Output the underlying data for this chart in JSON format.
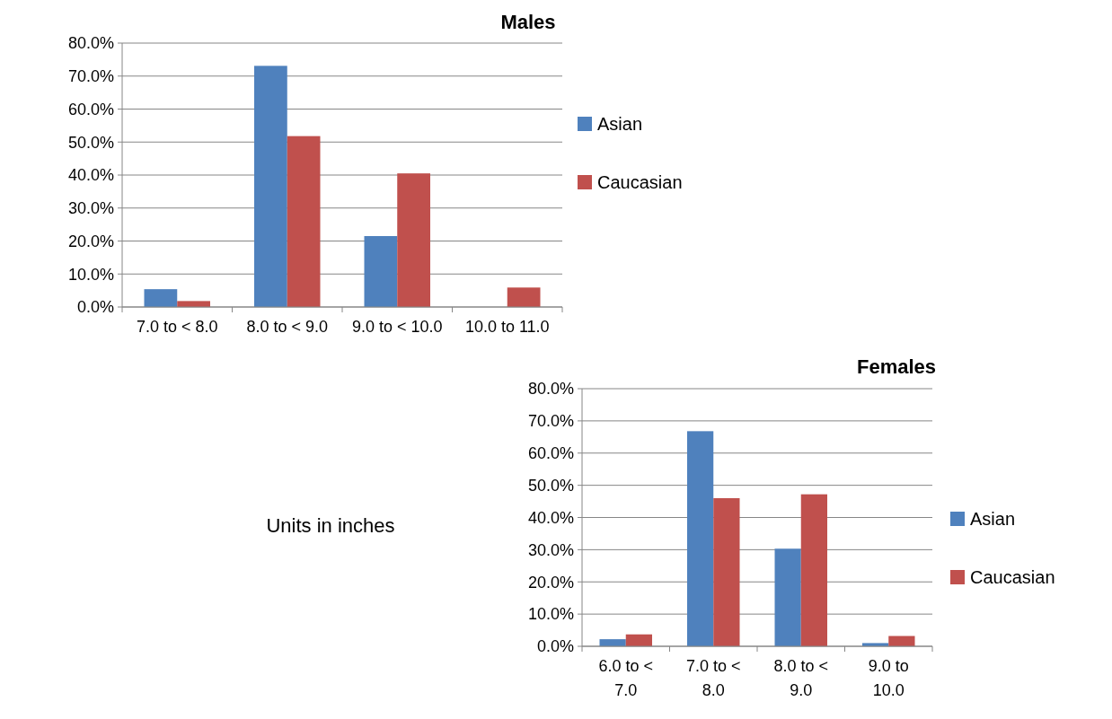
{
  "chart_data": [
    {
      "type": "bar",
      "title": "Males",
      "categories": [
        "7.0 to < 8.0",
        "8.0 to < 9.0",
        "9.0 to < 10.0",
        "10.0 to 11.0"
      ],
      "series": [
        {
          "name": "Asian",
          "color": "#4f81bd",
          "values": [
            5.4,
            73.1,
            21.5,
            null
          ]
        },
        {
          "name": "Caucasian",
          "color": "#c0504d",
          "values": [
            1.8,
            51.8,
            40.5,
            5.9
          ]
        }
      ],
      "ylim": [
        0,
        80
      ],
      "yticks": [
        {
          "value": 0,
          "label": "0.0%"
        },
        {
          "value": 10,
          "label": "10.0%"
        },
        {
          "value": 20,
          "label": "20.0%"
        },
        {
          "value": 30,
          "label": "30.0%"
        },
        {
          "value": 40,
          "label": "40.0%"
        },
        {
          "value": 50,
          "label": "50.0%"
        },
        {
          "value": 60,
          "label": "60.0%"
        },
        {
          "value": 70,
          "label": "70.0%"
        },
        {
          "value": 80,
          "label": "80.0%"
        }
      ],
      "grid": "y",
      "legend": "right",
      "annotations": [
        "Units in inches"
      ]
    },
    {
      "type": "bar",
      "title": "Females",
      "categories": [
        "6.0 to < 7.0",
        "7.0 to < 8.0",
        "8.0 to < 9.0",
        "9.0 to 10.0"
      ],
      "series": [
        {
          "name": "Asian",
          "color": "#4f81bd",
          "values": [
            2.2,
            66.8,
            30.3,
            1.0
          ]
        },
        {
          "name": "Caucasian",
          "color": "#c0504d",
          "values": [
            3.7,
            46.0,
            47.2,
            3.2
          ]
        }
      ],
      "ylim": [
        0,
        80
      ],
      "yticks": [
        {
          "value": 0,
          "label": "0.0%"
        },
        {
          "value": 10,
          "label": "10.0%"
        },
        {
          "value": 20,
          "label": "20.0%"
        },
        {
          "value": 30,
          "label": "30.0%"
        },
        {
          "value": 40,
          "label": "40.0%"
        },
        {
          "value": 50,
          "label": "50.0%"
        },
        {
          "value": 60,
          "label": "60.0%"
        },
        {
          "value": 70,
          "label": "70.0%"
        },
        {
          "value": 80,
          "label": "80.0%"
        }
      ],
      "grid": "y",
      "legend": "right"
    }
  ]
}
